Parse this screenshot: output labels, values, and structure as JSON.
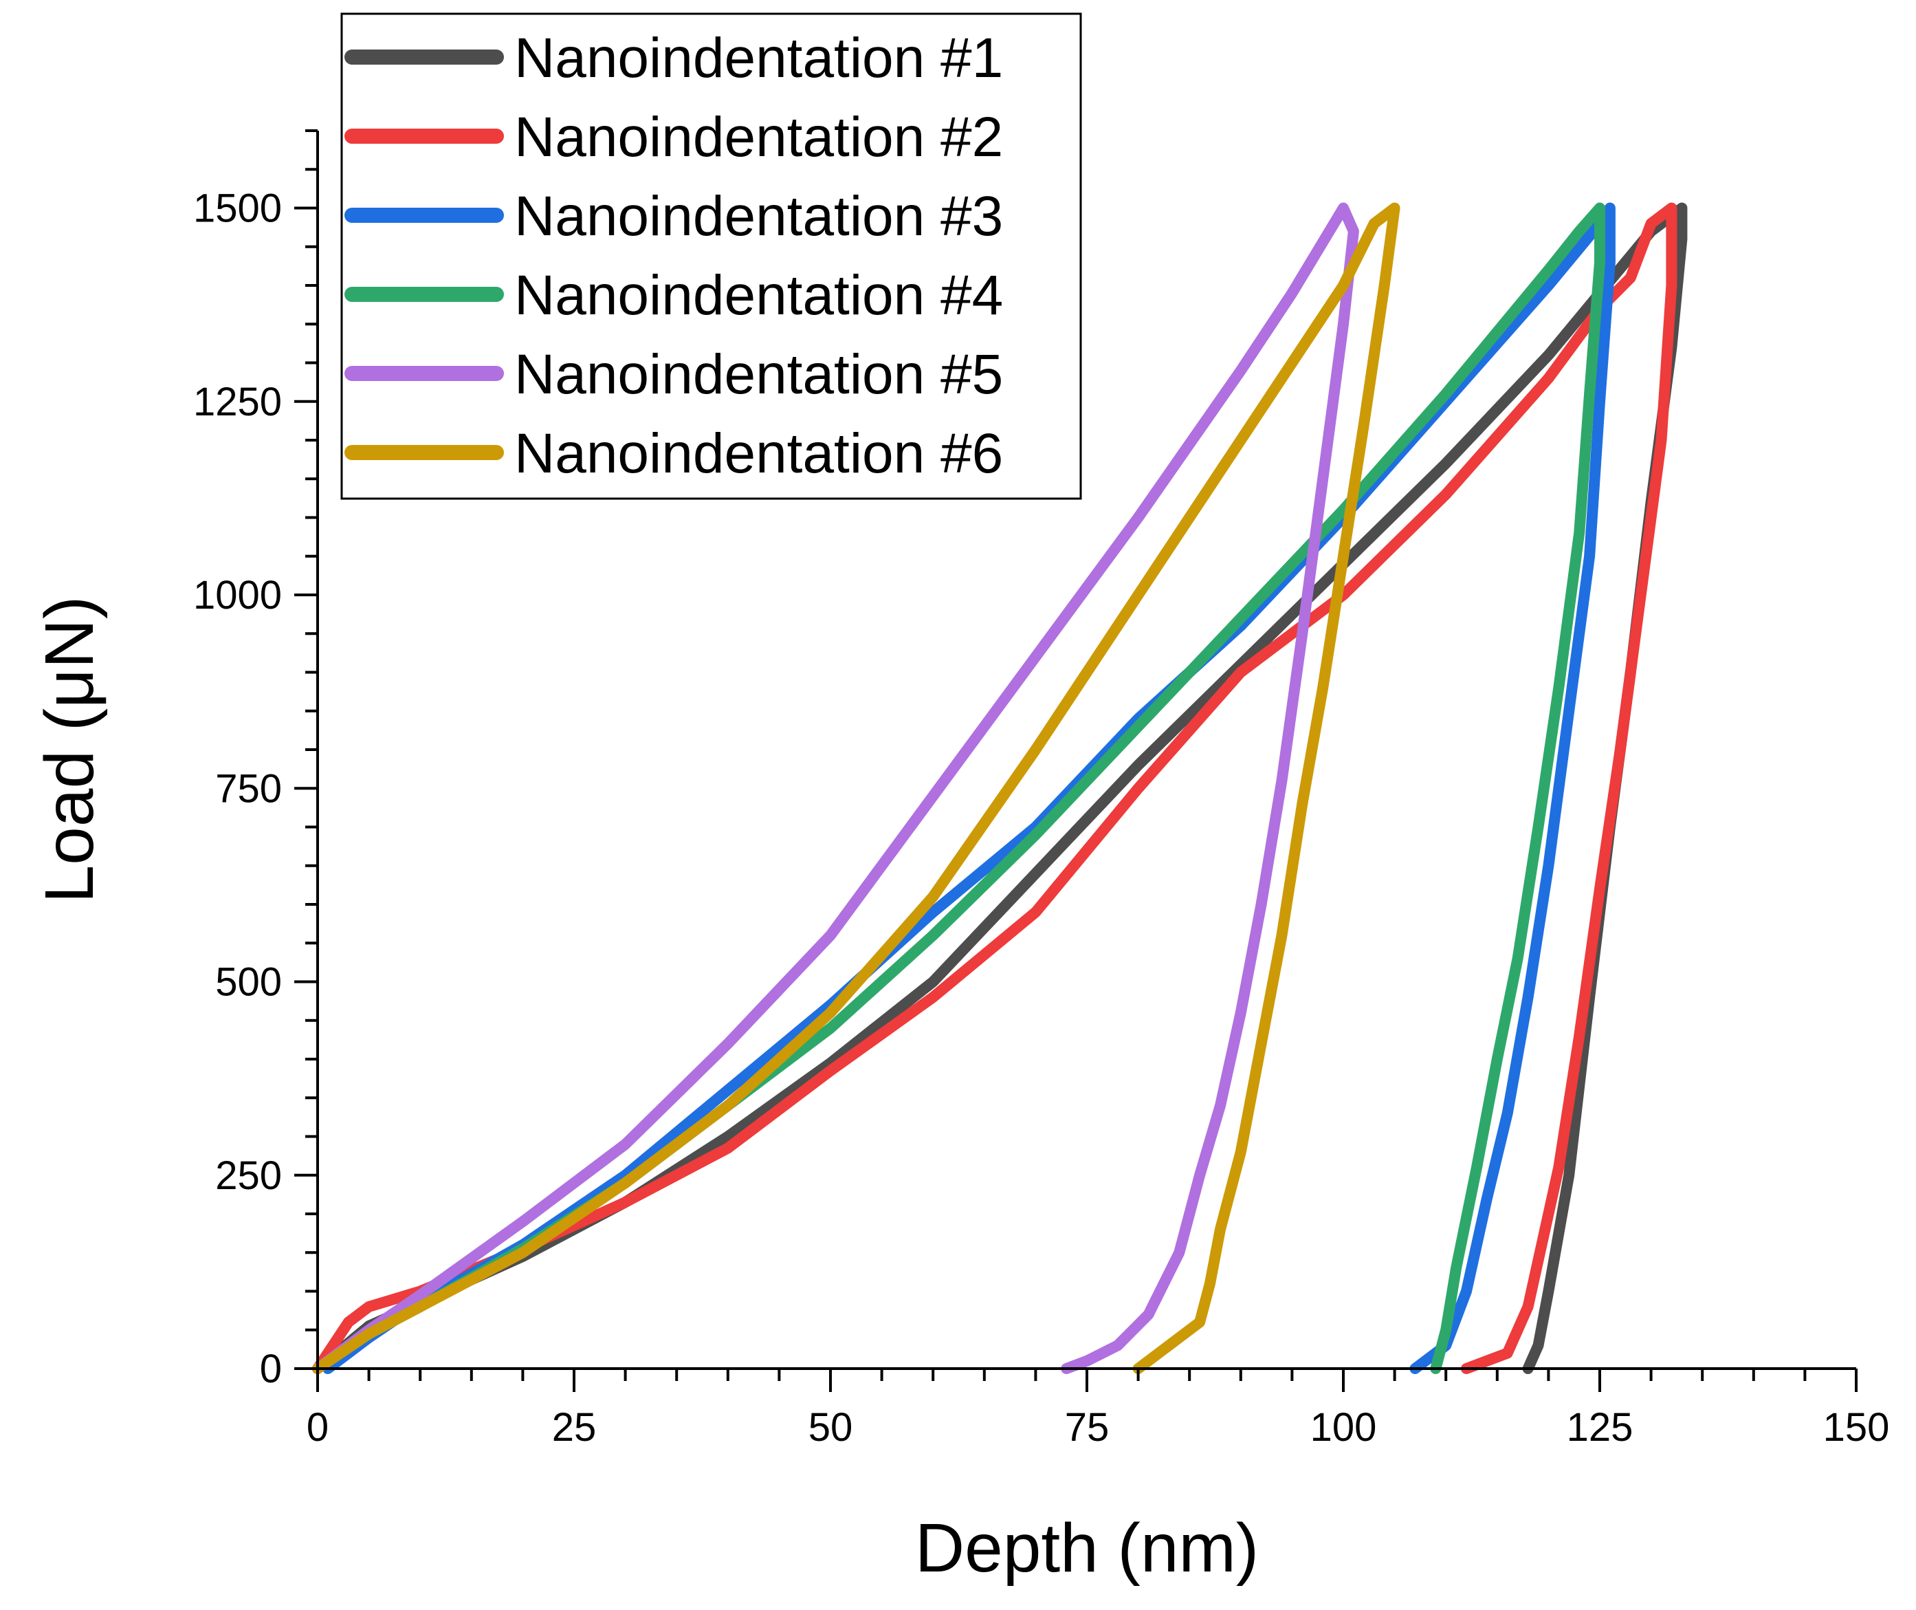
{
  "chart_data": {
    "type": "line",
    "title": "",
    "xlabel": "Depth (nm)",
    "ylabel": "Load (μN)",
    "xlim": [
      0,
      150
    ],
    "ylim": [
      0,
      1600
    ],
    "xticks": [
      0,
      25,
      50,
      75,
      100,
      125,
      150
    ],
    "xtick_labels": [
      "0",
      "25",
      "50",
      "75",
      "100",
      "125",
      "150"
    ],
    "yticks": [
      0,
      250,
      500,
      750,
      1000,
      1250,
      1500
    ],
    "ytick_labels": [
      "0",
      "250",
      "500",
      "750",
      "1000",
      "1250",
      "1500"
    ],
    "grid": false,
    "legend_position": "top-left",
    "series": [
      {
        "name": "Nanoindentation #1",
        "color": "#4d4d4d",
        "x": [
          0,
          5,
          10,
          20,
          30,
          40,
          50,
          60,
          70,
          80,
          90,
          100,
          110,
          120,
          125,
          130,
          133,
          133,
          132,
          130,
          128,
          126,
          124,
          122,
          120,
          119,
          118
        ],
        "y": [
          0,
          55,
          85,
          145,
          215,
          300,
          395,
          500,
          640,
          780,
          910,
          1040,
          1170,
          1310,
          1390,
          1470,
          1500,
          1460,
          1320,
          1120,
          900,
          700,
          480,
          250,
          100,
          30,
          0
        ]
      },
      {
        "name": "Nanoindentation #2",
        "color": "#ee3b3b",
        "x": [
          0,
          3,
          5,
          10,
          20,
          30,
          40,
          50,
          60,
          70,
          80,
          90,
          100,
          110,
          120,
          125,
          128,
          130,
          132,
          132,
          131,
          129,
          127,
          125,
          123,
          121,
          118,
          116,
          112
        ],
        "y": [
          0,
          60,
          80,
          100,
          155,
          215,
          285,
          385,
          480,
          590,
          750,
          900,
          1000,
          1130,
          1280,
          1370,
          1410,
          1480,
          1500,
          1400,
          1200,
          1000,
          800,
          620,
          430,
          260,
          80,
          20,
          0
        ]
      },
      {
        "name": "Nanoindentation #3",
        "color": "#1f6fe0",
        "x": [
          1,
          5,
          10,
          20,
          30,
          40,
          50,
          60,
          70,
          80,
          90,
          100,
          110,
          120,
          125,
          126,
          126,
          125,
          124,
          122,
          120,
          118,
          116,
          114,
          112,
          110,
          107
        ],
        "y": [
          0,
          40,
          85,
          160,
          250,
          360,
          470,
          590,
          700,
          840,
          960,
          1100,
          1250,
          1400,
          1480,
          1500,
          1430,
          1250,
          1050,
          850,
          650,
          480,
          330,
          220,
          100,
          30,
          0
        ]
      },
      {
        "name": "Nanoindentation #4",
        "color": "#2ea86a",
        "x": [
          0,
          5,
          10,
          20,
          30,
          40,
          50,
          60,
          70,
          80,
          90,
          100,
          110,
          120,
          123,
          125,
          125,
          124,
          123,
          121,
          119,
          117,
          115,
          113,
          111,
          110,
          109
        ],
        "y": [
          0,
          45,
          80,
          155,
          240,
          340,
          440,
          560,
          690,
          830,
          970,
          1110,
          1260,
          1420,
          1470,
          1500,
          1430,
          1260,
          1080,
          880,
          700,
          530,
          400,
          260,
          130,
          50,
          0
        ]
      },
      {
        "name": "Nanoindentation #5",
        "color": "#b070e0",
        "x": [
          0,
          5,
          10,
          20,
          30,
          40,
          50,
          60,
          70,
          80,
          90,
          95,
          100,
          101,
          100,
          98,
          96,
          94,
          92,
          90,
          88,
          86,
          84,
          81,
          78,
          75,
          73
        ],
        "y": [
          0,
          50,
          95,
          190,
          290,
          420,
          560,
          740,
          920,
          1100,
          1290,
          1390,
          1500,
          1470,
          1350,
          1150,
          950,
          760,
          600,
          460,
          340,
          250,
          150,
          70,
          30,
          10,
          0
        ]
      },
      {
        "name": "Nanoindentation #6",
        "color": "#cc9a06",
        "x": [
          0,
          5,
          10,
          20,
          30,
          40,
          50,
          60,
          70,
          80,
          90,
          100,
          103,
          105,
          104,
          102,
          100,
          98,
          96,
          94,
          92,
          90,
          88,
          87,
          86,
          83,
          80
        ],
        "y": [
          0,
          45,
          80,
          150,
          240,
          340,
          460,
          610,
          800,
          1000,
          1200,
          1400,
          1480,
          1500,
          1400,
          1220,
          1050,
          880,
          730,
          560,
          420,
          280,
          180,
          110,
          60,
          30,
          0
        ]
      }
    ]
  }
}
